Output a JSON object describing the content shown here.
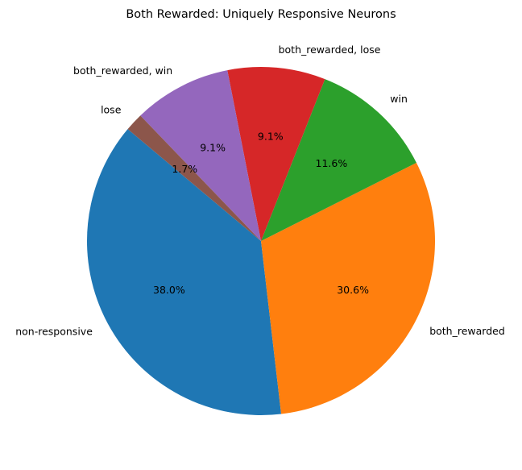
{
  "chart_data": {
    "type": "pie",
    "title": "Both Rewarded: Uniquely Responsive Neurons",
    "start_angle_deg": 140,
    "direction": "counterclockwise",
    "slices": [
      {
        "label": "non-responsive",
        "value": 38.0,
        "pct_label": "38.0%",
        "color": "#1f77b4"
      },
      {
        "label": "both_rewarded",
        "value": 30.6,
        "pct_label": "30.6%",
        "color": "#ff7f0e"
      },
      {
        "label": "win",
        "value": 11.6,
        "pct_label": "11.6%",
        "color": "#2ca02c"
      },
      {
        "label": "both_rewarded, lose",
        "value": 9.1,
        "pct_label": "9.1%",
        "color": "#d62728"
      },
      {
        "label": "both_rewarded, win",
        "value": 9.1,
        "pct_label": "9.1%",
        "color": "#9467bd"
      },
      {
        "label": "lose",
        "value": 1.7,
        "pct_label": "1.7%",
        "color": "#8c564b"
      }
    ]
  }
}
